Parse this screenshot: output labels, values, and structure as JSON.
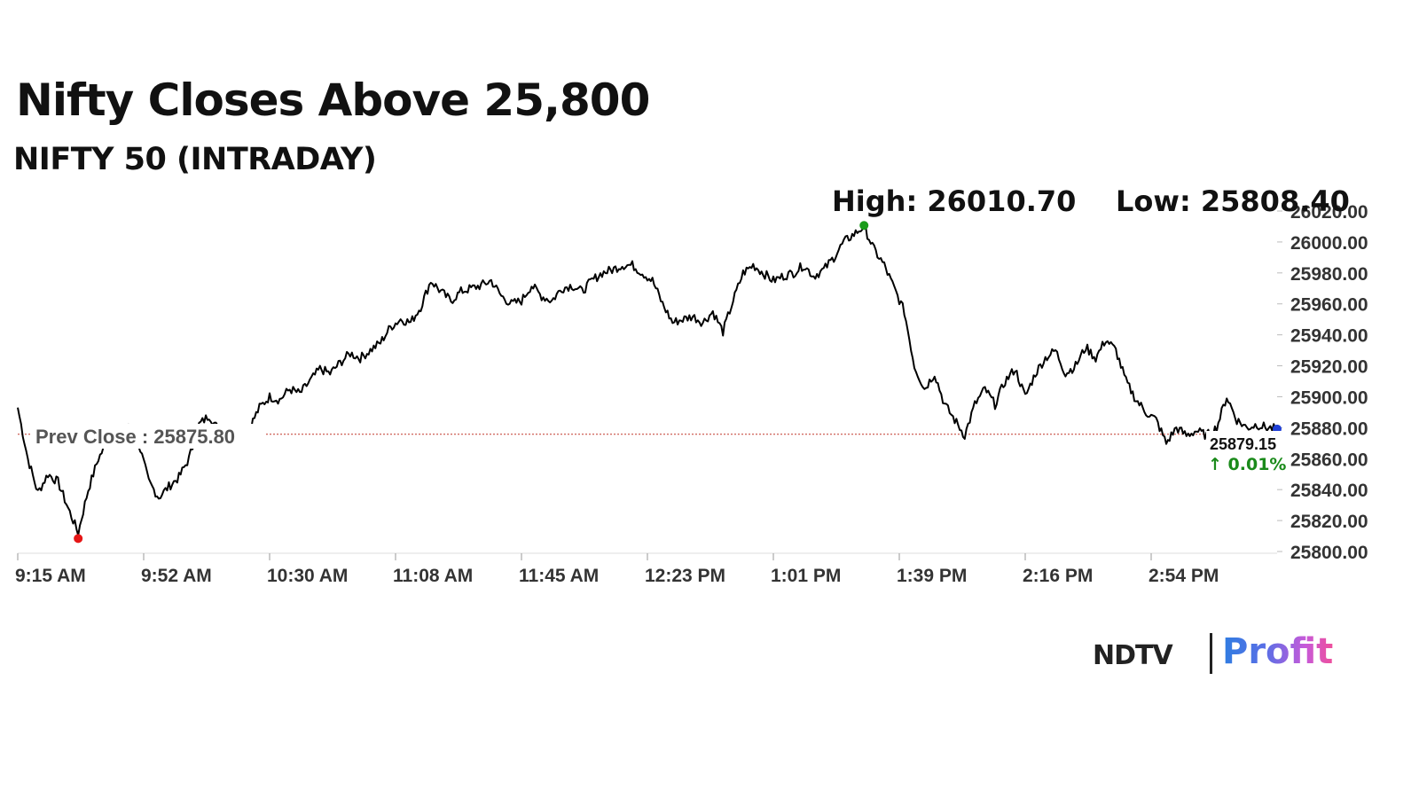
{
  "chart_data": {
    "type": "line",
    "title": "Nifty Closes Above 25,800",
    "subtitle": "NIFTY 50 (INTRADAY)",
    "xlabel": "",
    "ylabel": "",
    "ylim": [
      25800,
      26020
    ],
    "y_ticks": [
      "26020.00",
      "26000.00",
      "25980.00",
      "25960.00",
      "25940.00",
      "25920.00",
      "25900.00",
      "25880.00",
      "25860.00",
      "25840.00",
      "25820.00",
      "25800.00"
    ],
    "x_ticks": [
      "9:15 AM",
      "9:52 AM",
      "10:30 AM",
      "11:08 AM",
      "11:45 AM",
      "12:23 PM",
      "1:01 PM",
      "1:39 PM",
      "2:16 PM",
      "2:54 PM"
    ],
    "grid": false,
    "series": [
      {
        "values": [
          25893,
          25860,
          25838,
          25850,
          25845,
          25828,
          25812,
          25840,
          25860,
          25872,
          25868,
          25880,
          25870,
          25845,
          25835,
          25842,
          25848,
          25860,
          25882,
          25888,
          25878,
          25868,
          25875,
          25880,
          25893,
          25900,
          25898,
          25905,
          25902,
          25910,
          25918,
          25915,
          25922,
          25928,
          25925,
          25930,
          25935,
          25945,
          25950,
          25948,
          25958,
          25975,
          25968,
          25962,
          25968,
          25970,
          25972,
          25975,
          25965,
          25960,
          25962,
          25972,
          25965,
          25962,
          25970,
          25972,
          25968,
          25975,
          25980,
          25982,
          25985,
          25985,
          25980,
          25975,
          25960,
          25948,
          25950,
          25952,
          25948,
          25955,
          25942,
          25962,
          25980,
          25985,
          25980,
          25975,
          25978,
          25980,
          25985,
          25978,
          25982,
          25990,
          26000,
          26005,
          26010,
          25995,
          25985,
          25970,
          25955,
          25920,
          25905,
          25915,
          25895,
          25885,
          25875,
          25895,
          25905,
          25895,
          25910,
          25918,
          25900,
          25915,
          25925,
          25930,
          25915,
          25920,
          25932,
          25925,
          25937,
          25930,
          25910,
          25898,
          25890,
          25885,
          25870,
          25880,
          25875,
          25878,
          25875,
          25880,
          25900,
          25885,
          25880,
          25882,
          25880,
          25879.15
        ]
      }
    ],
    "annotations": {
      "prev_close_label": "Prev Close : 25875.80",
      "prev_close_value": 25875.8,
      "high_label": "High: 26010.70",
      "high_value": 26010.7,
      "low_label": "Low: 25808.40",
      "low_value": 25808.4,
      "last_value_label": "25879.15",
      "last_change_label": "↑ 0.01%"
    },
    "colors": {
      "line": "#000000",
      "prev_close": "#c0392b",
      "high_marker": "#1a9c1a",
      "low_marker": "#e51616",
      "last_marker": "#1f3fd6",
      "change_positive": "#1a8a1a"
    }
  },
  "branding": {
    "ndtv": "NDTV",
    "profit": "Profit"
  }
}
